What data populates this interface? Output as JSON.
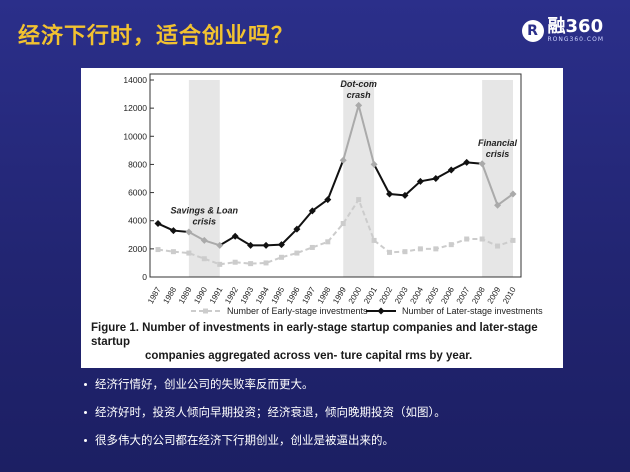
{
  "page": {
    "title": "经济下行时，适合创业吗？",
    "logo": {
      "text": "融360",
      "sub": "RONG360.COM"
    }
  },
  "chart_data": {
    "type": "line",
    "x": [
      1987,
      1988,
      1989,
      1990,
      1991,
      1992,
      1993,
      1994,
      1995,
      1996,
      1997,
      1998,
      1999,
      2000,
      2001,
      2002,
      2003,
      2004,
      2005,
      2006,
      2007,
      2008,
      2009,
      2010
    ],
    "series": [
      {
        "name": "Number of Early-stage investments",
        "values": [
          1950,
          1800,
          1700,
          1300,
          900,
          1050,
          950,
          1000,
          1400,
          1700,
          2100,
          2500,
          3800,
          5500,
          2600,
          1750,
          1800,
          2000,
          2000,
          2300,
          2700,
          2700,
          2200,
          2600
        ],
        "color": "#cccccc",
        "style": "dashed",
        "marker": "square"
      },
      {
        "name": "Number of Later-stage investments",
        "values": [
          3800,
          3300,
          3200,
          2600,
          2250,
          2900,
          2250,
          2250,
          2300,
          3400,
          4700,
          5500,
          8300,
          12200,
          8000,
          5900,
          5800,
          6800,
          7000,
          7600,
          8150,
          8050,
          5100,
          5900
        ],
        "color": "#111111",
        "highlight_color": "#aaaaaa",
        "style": "solid",
        "marker": "diamond"
      }
    ],
    "ylim": [
      0,
      14000
    ],
    "yticks": [
      0,
      2000,
      4000,
      6000,
      8000,
      10000,
      12000,
      14000
    ],
    "shaded_ranges": [
      [
        1989,
        1991
      ],
      [
        1999,
        2001
      ],
      [
        2008,
        2010
      ]
    ],
    "annotations": [
      {
        "text": "Savings & Loan",
        "text2": "crisis",
        "x": 1990,
        "y": 4500
      },
      {
        "text": "Dot-com",
        "text2": "crash",
        "x": 2000,
        "y": 13500
      },
      {
        "text": "Financial",
        "text2": "crisis",
        "x": 2009,
        "y": 9300
      }
    ],
    "legend_position": "bottom",
    "caption_line1": "Figure 1. Number of investments in early-stage startup companies and later-stage startup",
    "caption_line2": "companies aggregated across ven- ture capital rms by year."
  },
  "bullets": [
    "经济行情好，创业公司的失败率反而更大。",
    "经济好时，投资人倾向早期投资；经济衰退，倾向晚期投资（如图）。",
    "很多伟大的公司都在经济下行期创业，创业是被逼出来的。"
  ]
}
